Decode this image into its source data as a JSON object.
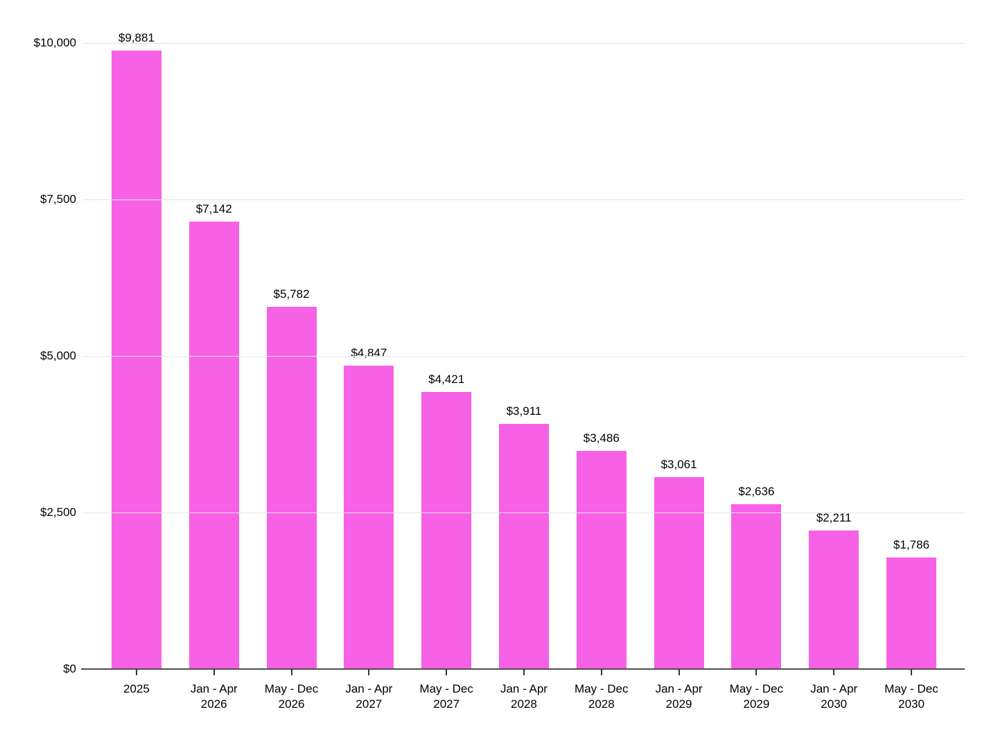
{
  "chart_data": {
    "type": "bar",
    "title": "",
    "xlabel": "",
    "ylabel": "",
    "grid": true,
    "legend": "none",
    "ylim": [
      0,
      10000
    ],
    "categories": [
      {
        "line1": "2025",
        "line2": ""
      },
      {
        "line1": "Jan - Apr",
        "line2": "2026"
      },
      {
        "line1": "May - Dec",
        "line2": "2026"
      },
      {
        "line1": "Jan - Apr",
        "line2": "2027"
      },
      {
        "line1": "May - Dec",
        "line2": "2027"
      },
      {
        "line1": "Jan - Apr",
        "line2": "2028"
      },
      {
        "line1": "May - Dec",
        "line2": "2028"
      },
      {
        "line1": "Jan - Apr",
        "line2": "2029"
      },
      {
        "line1": "May - Dec",
        "line2": "2029"
      },
      {
        "line1": "Jan - Apr",
        "line2": "2030"
      },
      {
        "line1": "May - Dec",
        "line2": "2030"
      }
    ],
    "values": [
      9881,
      7142,
      5782,
      4847,
      4421,
      3911,
      3486,
      3061,
      2636,
      2211,
      1786
    ],
    "value_labels": [
      "$9,881",
      "$7,142",
      "$5,782",
      "$4,847",
      "$4,421",
      "$3,911",
      "$3,486",
      "$3,061",
      "$2,636",
      "$2,211",
      "$1,786"
    ],
    "y_axis_ticks": [
      {
        "value": 10000,
        "label": "$10,000"
      },
      {
        "value": 7500,
        "label": "$7,500"
      },
      {
        "value": 5000,
        "label": "$5,000"
      },
      {
        "value": 2500,
        "label": "$2,500"
      },
      {
        "value": 0,
        "label": "$0"
      }
    ],
    "colors": {
      "bar": "#f661e6",
      "gridline": "#e3e3e3",
      "axis": "#4d4d4d",
      "tick": "#333333",
      "text": "#000000",
      "background": "#ffffff"
    }
  }
}
